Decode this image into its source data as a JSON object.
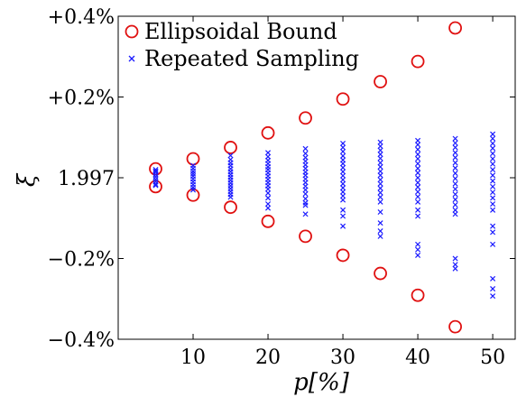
{
  "chart_data": {
    "type": "scatter",
    "title": "",
    "xlabel": "p[%]",
    "ylabel": "ξ",
    "xlim": [
      0,
      53
    ],
    "ylim": [
      -0.4,
      0.4
    ],
    "x_ticks": [
      10,
      20,
      30,
      40,
      50
    ],
    "y_ticks": [
      {
        "value": 0.4,
        "label": "+0.4%"
      },
      {
        "value": 0.2,
        "label": "+0.2%"
      },
      {
        "value": 0.0,
        "label": "1.997"
      },
      {
        "value": -0.2,
        "label": "−0.2%"
      },
      {
        "value": -0.4,
        "label": "−0.4%"
      }
    ],
    "grid": false,
    "legend_position": "top-left",
    "series": [
      {
        "name": "Ellipsoidal Bound",
        "marker": "circle",
        "color": "#e01010",
        "points": [
          [
            5,
            0.022
          ],
          [
            5,
            -0.022
          ],
          [
            10,
            0.047
          ],
          [
            10,
            -0.043
          ],
          [
            15,
            0.075
          ],
          [
            15,
            -0.073
          ],
          [
            20,
            0.111
          ],
          [
            20,
            -0.108
          ],
          [
            25,
            0.148
          ],
          [
            25,
            -0.145
          ],
          [
            30,
            0.195
          ],
          [
            30,
            -0.192
          ],
          [
            35,
            0.238
          ],
          [
            35,
            -0.237
          ],
          [
            40,
            0.288
          ],
          [
            40,
            -0.291
          ],
          [
            45,
            0.371
          ],
          [
            45,
            -0.369
          ]
        ]
      },
      {
        "name": "Repeated Sampling",
        "marker": "x",
        "color": "#1a1aff",
        "points": [
          [
            5,
            0.02
          ],
          [
            5,
            0.014
          ],
          [
            5,
            0.008
          ],
          [
            5,
            0.002
          ],
          [
            5,
            -0.004
          ],
          [
            5,
            -0.01
          ],
          [
            5,
            -0.016
          ],
          [
            5,
            0.016
          ],
          [
            5,
            -0.019
          ],
          [
            10,
            0.03
          ],
          [
            10,
            0.023
          ],
          [
            10,
            0.016
          ],
          [
            10,
            0.01
          ],
          [
            10,
            0.004
          ],
          [
            10,
            -0.003
          ],
          [
            10,
            -0.01
          ],
          [
            10,
            -0.017
          ],
          [
            10,
            -0.024
          ],
          [
            10,
            -0.03
          ],
          [
            15,
            0.055
          ],
          [
            15,
            0.045
          ],
          [
            15,
            0.037
          ],
          [
            15,
            0.03
          ],
          [
            15,
            0.022
          ],
          [
            15,
            0.015
          ],
          [
            15,
            0.008
          ],
          [
            15,
            0.001
          ],
          [
            15,
            -0.006
          ],
          [
            15,
            -0.013
          ],
          [
            15,
            -0.02
          ],
          [
            15,
            -0.027
          ],
          [
            15,
            -0.034
          ],
          [
            15,
            -0.041
          ],
          [
            15,
            -0.048
          ],
          [
            20,
            0.062
          ],
          [
            20,
            0.052
          ],
          [
            20,
            0.043
          ],
          [
            20,
            0.035
          ],
          [
            20,
            0.027
          ],
          [
            20,
            0.02
          ],
          [
            20,
            0.012
          ],
          [
            20,
            0.004
          ],
          [
            20,
            -0.004
          ],
          [
            20,
            -0.012
          ],
          [
            20,
            -0.02
          ],
          [
            20,
            -0.028
          ],
          [
            20,
            -0.038
          ],
          [
            20,
            -0.05
          ],
          [
            20,
            -0.065
          ],
          [
            20,
            -0.075
          ],
          [
            25,
            0.072
          ],
          [
            25,
            0.06
          ],
          [
            25,
            0.05
          ],
          [
            25,
            0.041
          ],
          [
            25,
            0.032
          ],
          [
            25,
            0.023
          ],
          [
            25,
            0.014
          ],
          [
            25,
            0.006
          ],
          [
            25,
            -0.003
          ],
          [
            25,
            -0.012
          ],
          [
            25,
            -0.021
          ],
          [
            25,
            -0.03
          ],
          [
            25,
            -0.04
          ],
          [
            25,
            -0.052
          ],
          [
            25,
            -0.062
          ],
          [
            25,
            -0.068
          ],
          [
            25,
            -0.09
          ],
          [
            30,
            0.085
          ],
          [
            30,
            0.075
          ],
          [
            30,
            0.065
          ],
          [
            30,
            0.054
          ],
          [
            30,
            0.044
          ],
          [
            30,
            0.035
          ],
          [
            30,
            0.025
          ],
          [
            30,
            0.015
          ],
          [
            30,
            0.005
          ],
          [
            30,
            -0.005
          ],
          [
            30,
            -0.015
          ],
          [
            30,
            -0.025
          ],
          [
            30,
            -0.035
          ],
          [
            30,
            -0.045
          ],
          [
            30,
            -0.055
          ],
          [
            30,
            -0.08
          ],
          [
            30,
            -0.095
          ],
          [
            30,
            -0.12
          ],
          [
            35,
            0.088
          ],
          [
            35,
            0.078
          ],
          [
            35,
            0.068
          ],
          [
            35,
            0.058
          ],
          [
            35,
            0.048
          ],
          [
            35,
            0.037
          ],
          [
            35,
            0.027
          ],
          [
            35,
            0.016
          ],
          [
            35,
            0.006
          ],
          [
            35,
            -0.005
          ],
          [
            35,
            -0.015
          ],
          [
            35,
            -0.026
          ],
          [
            35,
            -0.037
          ],
          [
            35,
            -0.048
          ],
          [
            35,
            -0.06
          ],
          [
            35,
            -0.085
          ],
          [
            35,
            -0.112
          ],
          [
            35,
            -0.132
          ],
          [
            35,
            -0.145
          ],
          [
            40,
            0.092
          ],
          [
            40,
            0.082
          ],
          [
            40,
            0.07
          ],
          [
            40,
            0.058
          ],
          [
            40,
            0.047
          ],
          [
            40,
            0.035
          ],
          [
            40,
            0.023
          ],
          [
            40,
            0.012
          ],
          [
            40,
            0.0
          ],
          [
            40,
            -0.012
          ],
          [
            40,
            -0.023
          ],
          [
            40,
            -0.035
          ],
          [
            40,
            -0.047
          ],
          [
            40,
            -0.06
          ],
          [
            40,
            -0.08
          ],
          [
            40,
            -0.095
          ],
          [
            40,
            -0.165
          ],
          [
            40,
            -0.178
          ],
          [
            40,
            -0.192
          ],
          [
            45,
            0.097
          ],
          [
            45,
            0.086
          ],
          [
            45,
            0.075
          ],
          [
            45,
            0.062
          ],
          [
            45,
            0.05
          ],
          [
            45,
            0.037
          ],
          [
            45,
            0.024
          ],
          [
            45,
            0.011
          ],
          [
            45,
            -0.002
          ],
          [
            45,
            -0.015
          ],
          [
            45,
            -0.028
          ],
          [
            45,
            -0.041
          ],
          [
            45,
            -0.054
          ],
          [
            45,
            -0.067
          ],
          [
            45,
            -0.08
          ],
          [
            45,
            -0.09
          ],
          [
            45,
            -0.2
          ],
          [
            45,
            -0.215
          ],
          [
            45,
            -0.225
          ],
          [
            50,
            0.108
          ],
          [
            50,
            0.097
          ],
          [
            50,
            0.085
          ],
          [
            50,
            0.073
          ],
          [
            50,
            0.06
          ],
          [
            50,
            0.047
          ],
          [
            50,
            0.034
          ],
          [
            50,
            0.02
          ],
          [
            50,
            0.006
          ],
          [
            50,
            -0.008
          ],
          [
            50,
            -0.022
          ],
          [
            50,
            -0.036
          ],
          [
            50,
            -0.05
          ],
          [
            50,
            -0.065
          ],
          [
            50,
            -0.08
          ],
          [
            50,
            -0.12
          ],
          [
            50,
            -0.135
          ],
          [
            50,
            -0.165
          ],
          [
            50,
            -0.25
          ],
          [
            50,
            -0.275
          ],
          [
            50,
            -0.293
          ]
        ]
      }
    ]
  }
}
